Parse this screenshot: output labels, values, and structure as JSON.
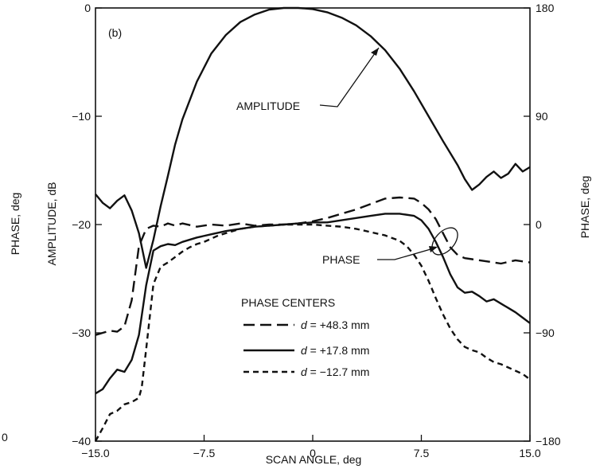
{
  "chart_data": {
    "type": "line",
    "panel_label": "(b)",
    "xlabel": "SCAN ANGLE, deg",
    "ylabel_left": "AMPLITUDE, dB",
    "ylabel_right": "PHASE, deg",
    "ylabel_left_outer": "PHASE, deg",
    "xlim": [
      -15,
      15
    ],
    "ylim_left": [
      -40,
      0
    ],
    "ylim_right": [
      -180,
      180
    ],
    "x_ticks": [
      "-15.0",
      "-7.5",
      "0",
      "7.5",
      "15.0"
    ],
    "y_ticks_left": [
      "0",
      "-10",
      "-20",
      "-30",
      "-40"
    ],
    "y_ticks_right": [
      "180",
      "90",
      "0",
      "-90",
      "-180"
    ],
    "stray_tick_label": "0",
    "annotations": {
      "amplitude": "AMPLITUDE",
      "phase": "PHASE"
    },
    "legend": {
      "title": "PHASE CENTERS",
      "entries": [
        {
          "prefix": "d",
          "label": " = +48.3 mm",
          "dash": "long"
        },
        {
          "prefix": "d",
          "label": " = +17.8 mm",
          "dash": "solid"
        },
        {
          "prefix": "d",
          "label": " = −12.7 mm",
          "dash": "short"
        }
      ]
    },
    "series": [
      {
        "name": "AMPLITUDE",
        "axis": "left",
        "dash": "solid",
        "x": [
          -15,
          -14.5,
          -14,
          -13.5,
          -13,
          -12.5,
          -12,
          -11.5,
          -11,
          -10.5,
          -10,
          -9.5,
          -9,
          -8,
          -7,
          -6,
          -5,
          -4,
          -3,
          -2,
          -1,
          0,
          1,
          2,
          3,
          4,
          5,
          6,
          7,
          8,
          9,
          10,
          10.5,
          11,
          11.5,
          12,
          12.5,
          13,
          13.5,
          14,
          14.5,
          15
        ],
        "y": [
          -17.2,
          -18,
          -18.5,
          -17.8,
          -17.3,
          -18.7,
          -20.8,
          -24,
          -21.4,
          -18.3,
          -15.5,
          -12.6,
          -10.3,
          -6.8,
          -4.2,
          -2.5,
          -1.3,
          -0.6,
          -0.15,
          0,
          0,
          -0.1,
          -0.4,
          -0.9,
          -1.6,
          -2.6,
          -3.9,
          -5.6,
          -7.7,
          -10,
          -12.3,
          -14.5,
          -15.8,
          -16.8,
          -16.3,
          -15.6,
          -15.1,
          -15.7,
          -15.3,
          -14.4,
          -15.1,
          -14.7
        ]
      },
      {
        "name": "d = +48.3 mm",
        "axis": "left",
        "dash": "long",
        "x": [
          -15,
          -14,
          -13.5,
          -13,
          -12.5,
          -12,
          -11.5,
          -11,
          -10.5,
          -10,
          -9.5,
          -9,
          -8,
          -7,
          -6,
          -5,
          -4,
          -3,
          -2,
          -1,
          0,
          1,
          2,
          3,
          4,
          5,
          6,
          7,
          7.5,
          8,
          8.5,
          9,
          9.5,
          10,
          10.5,
          11,
          12,
          13,
          14,
          15
        ],
        "y": [
          -30.2,
          -29.8,
          -29.9,
          -29.4,
          -27,
          -22,
          -20.4,
          -20.1,
          -20.2,
          -19.9,
          -20.1,
          -19.9,
          -20.2,
          -20,
          -20.1,
          -19.9,
          -20.1,
          -20,
          -20,
          -19.9,
          -19.7,
          -19.4,
          -19,
          -18.6,
          -18.1,
          -17.6,
          -17.5,
          -17.6,
          -18,
          -18.6,
          -19.5,
          -20.8,
          -22.1,
          -22.8,
          -23.1,
          -23.2,
          -23.4,
          -23.6,
          -23.3,
          -23.5
        ]
      },
      {
        "name": "d = +17.8 mm",
        "axis": "left",
        "dash": "solid",
        "x": [
          -15,
          -14.5,
          -14,
          -13.5,
          -13,
          -12.5,
          -12,
          -11.5,
          -11,
          -10.5,
          -10,
          -9.5,
          -9,
          -8,
          -7,
          -6,
          -5,
          -4,
          -3,
          -2,
          -1,
          0,
          1,
          2,
          3,
          4,
          5,
          6,
          7,
          7.5,
          8,
          8.5,
          9,
          9.5,
          10,
          10.5,
          11,
          11.5,
          12,
          12.5,
          13,
          13.5,
          14,
          14.5,
          15
        ],
        "y": [
          -35.6,
          -35.2,
          -34.2,
          -33.4,
          -33.6,
          -32.5,
          -30.2,
          -25.6,
          -22.4,
          -22,
          -21.8,
          -21.9,
          -21.6,
          -21.2,
          -20.9,
          -20.6,
          -20.4,
          -20.2,
          -20.1,
          -20,
          -19.9,
          -19.8,
          -19.8,
          -19.6,
          -19.4,
          -19.2,
          -19,
          -19,
          -19.2,
          -19.6,
          -20.4,
          -21.6,
          -23,
          -24.6,
          -25.8,
          -26.3,
          -26.2,
          -26.6,
          -27.1,
          -26.9,
          -27.3,
          -27.7,
          -28.1,
          -28.6,
          -29.1
        ]
      },
      {
        "name": "d = −12.7 mm",
        "axis": "left",
        "dash": "short",
        "x": [
          -15,
          -14.5,
          -14,
          -13.5,
          -13,
          -12.5,
          -12,
          -11.8,
          -11.5,
          -11,
          -10.5,
          -10,
          -9.5,
          -9,
          -8.5,
          -8,
          -7.5,
          -7,
          -6.5,
          -6,
          -5,
          -4,
          -3,
          -2,
          -1,
          0,
          1,
          2,
          3,
          4,
          5,
          6,
          6.5,
          7,
          7.5,
          8,
          8.5,
          9,
          9.5,
          10,
          10.5,
          11,
          11.5,
          12,
          12.5,
          13,
          13.5,
          14,
          14.5,
          15
        ],
        "y": [
          -40,
          -38.8,
          -37.5,
          -37.2,
          -36.6,
          -36.4,
          -36,
          -35,
          -31.5,
          -25.5,
          -23.9,
          -23.5,
          -23,
          -22.5,
          -22.1,
          -21.8,
          -21.6,
          -21.3,
          -21,
          -20.8,
          -20.4,
          -20.2,
          -20.1,
          -20,
          -20,
          -20,
          -20.1,
          -20.2,
          -20.4,
          -20.7,
          -21,
          -21.5,
          -22,
          -22.8,
          -23.8,
          -25.2,
          -26.8,
          -28.3,
          -29.6,
          -30.6,
          -31.3,
          -31.6,
          -31.8,
          -32.3,
          -32.7,
          -32.9,
          -33.2,
          -33.5,
          -33.8,
          -34.3
        ]
      }
    ]
  }
}
